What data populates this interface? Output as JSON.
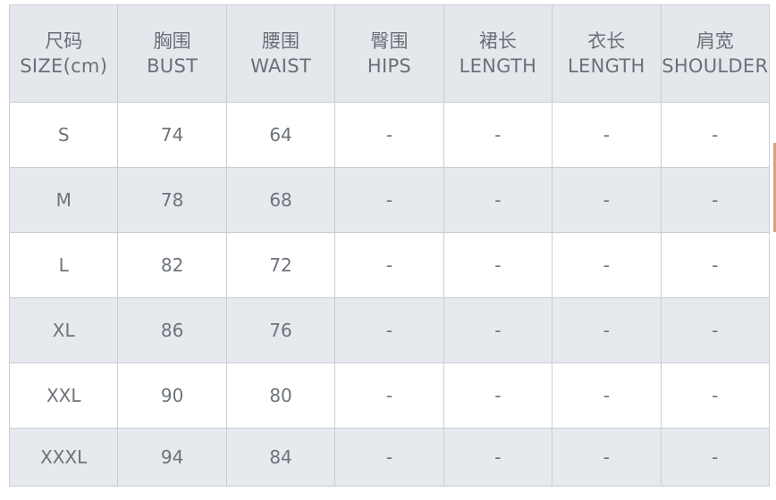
{
  "size_chart": {
    "headers": [
      {
        "zh": "尺码",
        "en": "SIZE(cm)"
      },
      {
        "zh": "胸围",
        "en": "BUST"
      },
      {
        "zh": "腰围",
        "en": "WAIST"
      },
      {
        "zh": "臀围",
        "en": "HIPS"
      },
      {
        "zh": "裙长",
        "en": "LENGTH"
      },
      {
        "zh": "衣长",
        "en": "LENGTH"
      },
      {
        "zh": "肩宽",
        "en": "SHOULDER"
      }
    ],
    "rows": [
      [
        "S",
        "74",
        "64",
        "-",
        "-",
        "-",
        "-"
      ],
      [
        "M",
        "78",
        "68",
        "-",
        "-",
        "-",
        "-"
      ],
      [
        "L",
        "82",
        "72",
        "-",
        "-",
        "-",
        "-"
      ],
      [
        "XL",
        "86",
        "76",
        "-",
        "-",
        "-",
        "-"
      ],
      [
        "XXL",
        "90",
        "80",
        "-",
        "-",
        "-",
        "-"
      ],
      [
        "XXXL",
        "94",
        "84",
        "-",
        "-",
        "-",
        "-"
      ]
    ]
  },
  "colors": {
    "header_bg": "#e4e8ec",
    "alt_row_bg": "#e6e9ed",
    "text": "#6d737a",
    "border": "#c9ced4"
  }
}
